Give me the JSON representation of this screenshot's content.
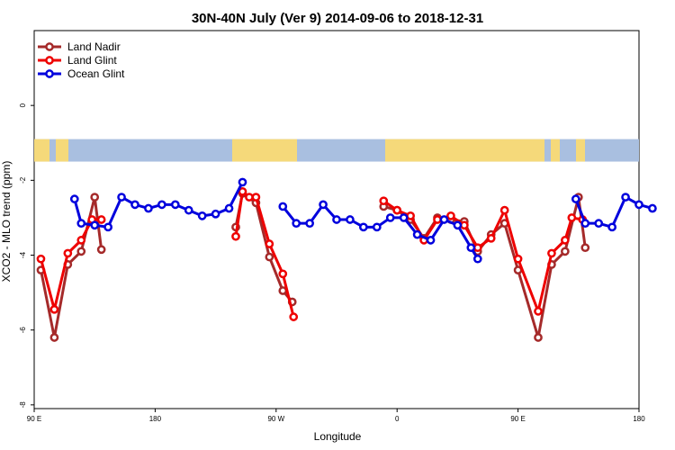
{
  "chart_data": {
    "type": "line",
    "title": "30N-40N July (Ver 9)   2014-09-06 to 2018-12-31",
    "xlabel": "Longitude",
    "ylabel": "XCO2 - MLO trend (ppm)",
    "xlim": [
      90,
      540
    ],
    "ylim": [
      -8.1,
      2
    ],
    "x_ticks": [
      {
        "value": 90,
        "label": "90 E"
      },
      {
        "value": 180,
        "label": "180"
      },
      {
        "value": 270,
        "label": "90 W"
      },
      {
        "value": 360,
        "label": "0"
      },
      {
        "value": 450,
        "label": "90 E"
      },
      {
        "value": 540,
        "label": "180"
      }
    ],
    "y_ticks": [
      {
        "value": 0,
        "label": "0"
      },
      {
        "value": -2,
        "label": "-2"
      },
      {
        "value": -4,
        "label": "-4"
      },
      {
        "value": -6,
        "label": "-6"
      },
      {
        "value": -8,
        "label": "-8"
      }
    ],
    "map_strip": {
      "y_top": -0.9,
      "y_bottom": -1.5,
      "ocean_color": "#a9bfe0",
      "land_color": "#f5d97a"
    },
    "legend_position": "top-left",
    "series": [
      {
        "name": "Land Nadir",
        "color": "#a52a2a",
        "segments": [
          [
            [
              95,
              -4.4
            ],
            [
              105,
              -6.2
            ],
            [
              115,
              -4.25
            ],
            [
              125,
              -3.9
            ],
            [
              135,
              -2.45
            ],
            [
              140,
              -3.85
            ]
          ],
          [
            [
              240,
              -3.25
            ],
            [
              245,
              -2.35
            ],
            [
              255,
              -2.6
            ],
            [
              265,
              -4.05
            ],
            [
              275,
              -4.95
            ],
            [
              282,
              -5.25
            ]
          ],
          [
            [
              350,
              -2.7
            ],
            [
              360,
              -2.8
            ],
            [
              370,
              -3.05
            ],
            [
              380,
              -3.55
            ],
            [
              390,
              -3.0
            ],
            [
              400,
              -3.05
            ],
            [
              410,
              -3.1
            ],
            [
              420,
              -3.9
            ],
            [
              430,
              -3.45
            ],
            [
              440,
              -3.15
            ],
            [
              450,
              -4.4
            ],
            [
              465,
              -6.2
            ],
            [
              475,
              -4.25
            ],
            [
              485,
              -3.9
            ],
            [
              495,
              -2.45
            ],
            [
              500,
              -3.8
            ]
          ]
        ]
      },
      {
        "name": "Land Glint",
        "color": "#ee0000",
        "segments": [
          [
            [
              95,
              -4.1
            ],
            [
              105,
              -5.45
            ],
            [
              115,
              -3.95
            ],
            [
              125,
              -3.6
            ],
            [
              133,
              -3.05
            ],
            [
              140,
              -3.05
            ]
          ],
          [
            [
              240,
              -3.5
            ],
            [
              245,
              -2.3
            ],
            [
              250,
              -2.45
            ],
            [
              255,
              -2.45
            ],
            [
              265,
              -3.7
            ],
            [
              275,
              -4.5
            ],
            [
              283,
              -5.65
            ]
          ],
          [
            [
              350,
              -2.55
            ],
            [
              360,
              -2.8
            ],
            [
              370,
              -2.95
            ],
            [
              380,
              -3.6
            ],
            [
              390,
              -3.05
            ],
            [
              400,
              -2.95
            ],
            [
              410,
              -3.2
            ],
            [
              420,
              -3.8
            ],
            [
              430,
              -3.55
            ],
            [
              440,
              -2.8
            ],
            [
              450,
              -4.1
            ],
            [
              465,
              -5.5
            ],
            [
              475,
              -3.95
            ],
            [
              485,
              -3.6
            ],
            [
              490,
              -3.0
            ],
            [
              498,
              -3.05
            ]
          ]
        ]
      },
      {
        "name": "Ocean Glint",
        "color": "#0000dd",
        "segments": [
          [
            [
              120,
              -2.5
            ],
            [
              125,
              -3.15
            ],
            [
              135,
              -3.2
            ],
            [
              145,
              -3.25
            ],
            [
              155,
              -2.45
            ],
            [
              165,
              -2.65
            ],
            [
              175,
              -2.75
            ],
            [
              185,
              -2.65
            ],
            [
              195,
              -2.65
            ],
            [
              205,
              -2.8
            ],
            [
              215,
              -2.95
            ],
            [
              225,
              -2.9
            ],
            [
              235,
              -2.75
            ],
            [
              245,
              -2.05
            ]
          ],
          [
            [
              275,
              -2.7
            ],
            [
              285,
              -3.15
            ],
            [
              295,
              -3.15
            ],
            [
              305,
              -2.65
            ],
            [
              315,
              -3.05
            ],
            [
              325,
              -3.05
            ],
            [
              335,
              -3.25
            ],
            [
              345,
              -3.25
            ],
            [
              355,
              -3.0
            ],
            [
              365,
              -3.0
            ],
            [
              375,
              -3.45
            ],
            [
              385,
              -3.6
            ],
            [
              395,
              -3.05
            ],
            [
              405,
              -3.2
            ],
            [
              415,
              -3.8
            ],
            [
              420,
              -4.1
            ]
          ],
          [
            [
              493,
              -2.5
            ],
            [
              500,
              -3.15
            ],
            [
              510,
              -3.15
            ],
            [
              520,
              -3.25
            ],
            [
              530,
              -2.45
            ],
            [
              540,
              -2.65
            ],
            [
              550,
              -2.75
            ]
          ]
        ]
      }
    ]
  }
}
